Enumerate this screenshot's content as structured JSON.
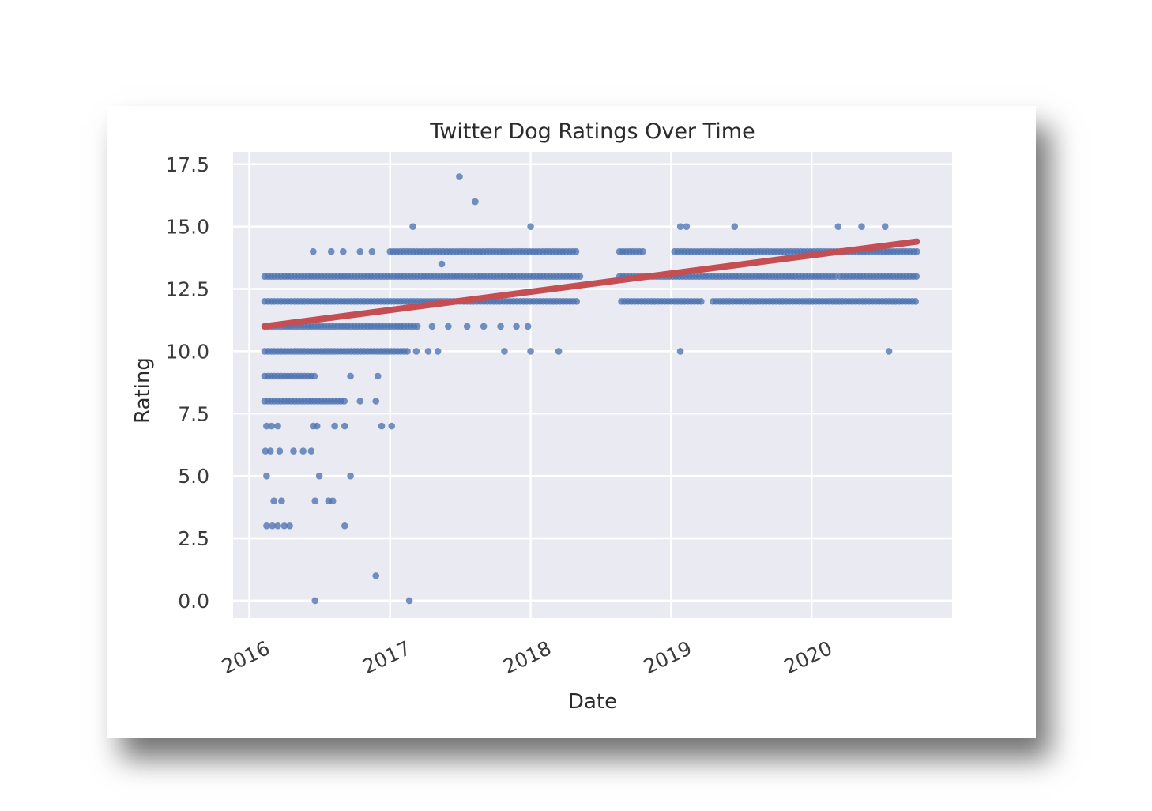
{
  "chart_data": {
    "type": "scatter",
    "title": "Twitter Dog Ratings Over Time",
    "xlabel": "Date",
    "ylabel": "Rating",
    "x_ticks": [
      "2016",
      "2017",
      "2018",
      "2019",
      "2020"
    ],
    "y_ticks": [
      "0.0",
      "2.5",
      "5.0",
      "7.5",
      "10.0",
      "12.5",
      "15.0",
      "17.5"
    ],
    "ylim": [
      -0.7,
      18
    ],
    "xlim": [
      "2015-11-20",
      "2020-12-31"
    ],
    "grid": true,
    "legend": "none",
    "colors": {
      "points": "#4c72b0",
      "trend": "#c44e52",
      "plot_bg": "#eaeaf2",
      "grid": "#ffffff"
    },
    "point_clusters": [
      {
        "y": 13,
        "ranges": [
          [
            "2016-02-10",
            "2018-05-10"
          ],
          [
            "2018-08-20",
            "2020-03-10"
          ],
          [
            "2020-03-15",
            "2020-10-01"
          ]
        ]
      },
      {
        "y": 12,
        "ranges": [
          [
            "2016-02-10",
            "2018-05-01"
          ],
          [
            "2018-08-25",
            "2019-03-25"
          ],
          [
            "2019-04-20",
            "2020-10-01"
          ]
        ]
      },
      {
        "y": 14,
        "ranges": [
          [
            "2017-01-01",
            "2018-05-05"
          ],
          [
            "2018-08-20",
            "2018-10-25"
          ],
          [
            "2019-01-10",
            "2020-10-01"
          ]
        ]
      },
      {
        "y": 11,
        "ranges": [
          [
            "2016-02-10",
            "2017-03-15"
          ]
        ]
      },
      {
        "y": 10,
        "ranges": [
          [
            "2016-02-10",
            "2017-02-20"
          ]
        ]
      },
      {
        "y": 9,
        "ranges": [
          [
            "2016-02-10",
            "2016-06-20"
          ]
        ]
      },
      {
        "y": 8,
        "ranges": [
          [
            "2016-02-10",
            "2016-09-05"
          ]
        ]
      }
    ],
    "points": [
      {
        "x": "2016-06-15",
        "y": 14
      },
      {
        "x": "2016-08-01",
        "y": 14
      },
      {
        "x": "2016-09-01",
        "y": 14
      },
      {
        "x": "2016-10-15",
        "y": 14
      },
      {
        "x": "2016-11-15",
        "y": 14
      },
      {
        "x": "2017-04-20",
        "y": 11
      },
      {
        "x": "2017-06-01",
        "y": 11
      },
      {
        "x": "2017-07-20",
        "y": 11
      },
      {
        "x": "2017-09-01",
        "y": 11
      },
      {
        "x": "2017-10-15",
        "y": 11
      },
      {
        "x": "2017-11-25",
        "y": 11
      },
      {
        "x": "2017-12-25",
        "y": 11
      },
      {
        "x": "2017-03-10",
        "y": 10
      },
      {
        "x": "2017-04-10",
        "y": 10
      },
      {
        "x": "2017-05-05",
        "y": 10
      },
      {
        "x": "2017-10-25",
        "y": 10
      },
      {
        "x": "2018-01-01",
        "y": 10
      },
      {
        "x": "2018-03-15",
        "y": 10
      },
      {
        "x": "2019-01-25",
        "y": 10
      },
      {
        "x": "2020-07-20",
        "y": 10
      },
      {
        "x": "2016-09-20",
        "y": 9
      },
      {
        "x": "2016-11-30",
        "y": 9
      },
      {
        "x": "2016-10-15",
        "y": 8
      },
      {
        "x": "2016-11-25",
        "y": 8
      },
      {
        "x": "2016-02-15",
        "y": 7
      },
      {
        "x": "2016-02-28",
        "y": 7
      },
      {
        "x": "2016-03-15",
        "y": 7
      },
      {
        "x": "2016-06-15",
        "y": 7
      },
      {
        "x": "2016-06-25",
        "y": 7
      },
      {
        "x": "2016-08-10",
        "y": 7
      },
      {
        "x": "2016-09-05",
        "y": 7
      },
      {
        "x": "2016-12-10",
        "y": 7
      },
      {
        "x": "2017-01-05",
        "y": 7
      },
      {
        "x": "2016-02-12",
        "y": 6
      },
      {
        "x": "2016-02-25",
        "y": 6
      },
      {
        "x": "2016-03-20",
        "y": 6
      },
      {
        "x": "2016-04-25",
        "y": 6
      },
      {
        "x": "2016-05-20",
        "y": 6
      },
      {
        "x": "2016-06-10",
        "y": 6
      },
      {
        "x": "2016-02-15",
        "y": 5
      },
      {
        "x": "2016-07-01",
        "y": 5
      },
      {
        "x": "2016-09-20",
        "y": 5
      },
      {
        "x": "2016-03-05",
        "y": 4
      },
      {
        "x": "2016-03-25",
        "y": 4
      },
      {
        "x": "2016-06-20",
        "y": 4
      },
      {
        "x": "2016-07-25",
        "y": 4
      },
      {
        "x": "2016-08-05",
        "y": 4
      },
      {
        "x": "2016-02-15",
        "y": 3
      },
      {
        "x": "2016-03-01",
        "y": 3
      },
      {
        "x": "2016-03-15",
        "y": 3
      },
      {
        "x": "2016-04-01",
        "y": 3
      },
      {
        "x": "2016-04-15",
        "y": 3
      },
      {
        "x": "2016-09-05",
        "y": 3
      },
      {
        "x": "2016-11-25",
        "y": 1
      },
      {
        "x": "2016-06-20",
        "y": 0
      },
      {
        "x": "2017-02-20",
        "y": 0
      },
      {
        "x": "2017-06-30",
        "y": 17
      },
      {
        "x": "2017-08-10",
        "y": 16
      },
      {
        "x": "2017-03-01",
        "y": 15
      },
      {
        "x": "2018-01-01",
        "y": 15
      },
      {
        "x": "2019-01-25",
        "y": 15
      },
      {
        "x": "2019-02-10",
        "y": 15
      },
      {
        "x": "2019-06-15",
        "y": 15
      },
      {
        "x": "2020-03-10",
        "y": 15
      },
      {
        "x": "2020-05-10",
        "y": 15
      },
      {
        "x": "2020-07-10",
        "y": 15
      },
      {
        "x": "2017-05-15",
        "y": 13.5
      }
    ],
    "trendline": [
      {
        "x": "2016-02-10",
        "y": 11.0
      },
      {
        "x": "2020-10-01",
        "y": 14.4
      }
    ]
  }
}
